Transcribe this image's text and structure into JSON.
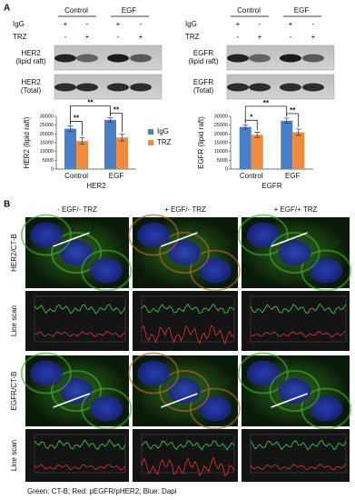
{
  "panels": {
    "a": "A",
    "b": "B"
  },
  "blots": [
    {
      "groups": [
        "Control",
        "EGF"
      ],
      "rows": [
        "IgG",
        "TRZ"
      ],
      "signs": [
        [
          "+",
          "-",
          "+",
          "-"
        ],
        [
          "-",
          "+",
          "-",
          "+"
        ]
      ],
      "bands": [
        "HER2\n(lipid raft)",
        "HER2\n(Total)"
      ]
    },
    {
      "groups": [
        "Control",
        "EGF"
      ],
      "rows": [
        "IgG",
        "TRZ"
      ],
      "signs": [
        [
          "+",
          "-",
          "+",
          "-"
        ],
        [
          "-",
          "+",
          "-",
          "+"
        ]
      ],
      "bands": [
        "EGFR\n(lipid raft)",
        "EGFR\n(Total)"
      ]
    }
  ],
  "chart_data": [
    {
      "type": "bar",
      "y_label": "HER2 (lipid raft)",
      "x_label": "HER2",
      "categories": [
        "Control",
        "EGF"
      ],
      "series": [
        {
          "name": "IgG",
          "color": "#4a7fc8",
          "values": [
            23000,
            28000
          ],
          "errors": [
            1500,
            1200
          ]
        },
        {
          "name": "TRZ",
          "color": "#f08a3c",
          "values": [
            16000,
            18000
          ],
          "errors": [
            1800,
            2000
          ]
        }
      ],
      "annotations": [
        "**",
        "**",
        "**"
      ],
      "ylim": [
        0,
        30000
      ],
      "yticks": [
        0,
        5000,
        10000,
        15000,
        20000,
        25000,
        30000
      ]
    },
    {
      "type": "bar",
      "y_label": "EGFR (lipid raft)",
      "x_label": "EGFR",
      "categories": [
        "Control",
        "EGF"
      ],
      "series": [
        {
          "color": "#4a7fc8",
          "values": [
            24000,
            27500
          ],
          "errors": [
            1200,
            1500
          ]
        },
        {
          "color": "#f08a3c",
          "values": [
            19500,
            21000
          ],
          "errors": [
            1500,
            1800
          ]
        }
      ],
      "annotations": [
        "*",
        "**",
        "**"
      ],
      "ylim": [
        0,
        30000
      ],
      "yticks": [
        0,
        5000,
        10000,
        15000,
        20000,
        25000,
        30000
      ]
    }
  ],
  "microscopy": {
    "columns": [
      "- EGF/- TRZ",
      "+ EGF/- TRZ",
      "+ EGF/+ TRZ"
    ],
    "rows": [
      "HER2/CT-B",
      "Line scan",
      "EGFR/CT-B",
      "Line scan"
    ],
    "caption": "Green: CT-B; Red: pEGFR/pHER2; Blue: Dapi"
  }
}
